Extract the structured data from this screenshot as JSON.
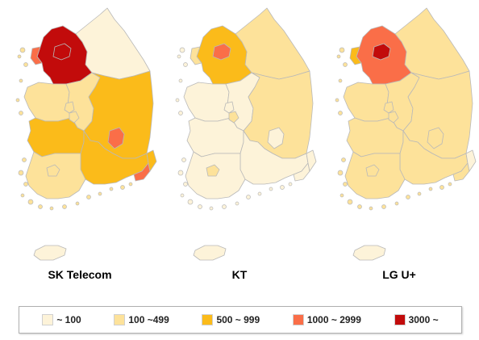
{
  "colors": {
    "c0": "#fdf3d9",
    "c1": "#fde29a",
    "c2": "#fbbb1a",
    "c3": "#fa6e48",
    "c4": "#c20b0b"
  },
  "maps": [
    {
      "title": "SK Telecom",
      "regions": {
        "seoul": "c4",
        "incheon": "c3",
        "gyeonggi": "c4",
        "gangwon": "c0",
        "chungbuk": "c1",
        "chungnam": "c1",
        "sejong": "c1",
        "daejeon": "c1",
        "gyeongbuk": "c2",
        "daegu": "c3",
        "jeonbuk": "c2",
        "gwangju": "c1",
        "jeonnam": "c1",
        "gyeongnam": "c2",
        "ulsan": "c2",
        "busan": "c3",
        "jeju": "c0"
      }
    },
    {
      "title": "KT",
      "regions": {
        "seoul": "c3",
        "incheon": "c1",
        "gyeonggi": "c2",
        "gangwon": "c1",
        "chungbuk": "c0",
        "chungnam": "c0",
        "sejong": "c0",
        "daejeon": "c1",
        "gyeongbuk": "c1",
        "daegu": "c0",
        "jeonbuk": "c0",
        "gwangju": "c1",
        "jeonnam": "c0",
        "gyeongnam": "c0",
        "ulsan": "c0",
        "busan": "c0",
        "jeju": "c0"
      }
    },
    {
      "title": "LG U+",
      "regions": {
        "seoul": "c4",
        "incheon": "c2",
        "gyeonggi": "c3",
        "gangwon": "c1",
        "chungbuk": "c1",
        "chungnam": "c1",
        "sejong": "c1",
        "daejeon": "c1",
        "gyeongbuk": "c1",
        "daegu": "c1",
        "jeonbuk": "c1",
        "gwangju": "c1",
        "jeonnam": "c1",
        "gyeongnam": "c1",
        "ulsan": "c0",
        "busan": "c1",
        "jeju": "c0"
      }
    }
  ],
  "legend": [
    {
      "label": "~ 100",
      "color": "c0"
    },
    {
      "label": "100 ~499",
      "color": "c1"
    },
    {
      "label": "500 ~ 999",
      "color": "c2"
    },
    {
      "label": "1000 ~ 2999",
      "color": "c3"
    },
    {
      "label": "3000 ~",
      "color": "c4"
    }
  ]
}
